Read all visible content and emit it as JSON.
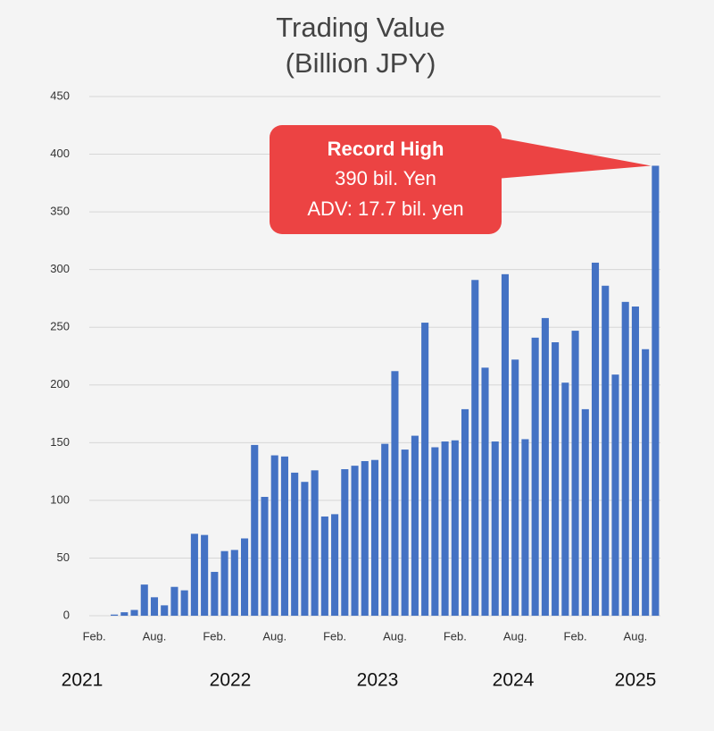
{
  "chart_data": {
    "type": "bar",
    "title": "Trading Value",
    "subtitle": "(Billion JPY)",
    "categories": [
      "Feb.",
      null,
      null,
      null,
      null,
      null,
      "Aug.",
      null,
      null,
      null,
      null,
      null,
      "Feb.",
      null,
      null,
      null,
      null,
      null,
      "Aug.",
      null,
      null,
      null,
      null,
      null,
      "Feb.",
      null,
      null,
      null,
      null,
      null,
      "Aug.",
      null,
      null,
      null,
      null,
      null,
      "Feb.",
      null,
      null,
      null,
      null,
      null,
      "Aug.",
      null,
      null,
      null,
      null,
      null,
      "Feb.",
      null,
      null,
      null,
      null,
      null,
      "Aug.",
      null,
      null
    ],
    "values": [
      0,
      0,
      1,
      3,
      5,
      27,
      16,
      9,
      25,
      22,
      71,
      70,
      38,
      56,
      57,
      67,
      148,
      103,
      139,
      138,
      124,
      116,
      126,
      86,
      88,
      127,
      130,
      134,
      135,
      149,
      212,
      144,
      156,
      254,
      146,
      151,
      152,
      179,
      291,
      215,
      151,
      296,
      222,
      153,
      241,
      258,
      237,
      202,
      247,
      179,
      306,
      286,
      209,
      272,
      268,
      231,
      390
    ],
    "color": "#4472c4",
    "ylim": [
      0,
      450
    ],
    "yticks": [
      0,
      50,
      100,
      150,
      200,
      250,
      300,
      350,
      400,
      450
    ],
    "grid": true,
    "year_labels": [
      "2021",
      "2022",
      "2023",
      "2024",
      "2025"
    ],
    "callout": {
      "lines": [
        "Record High",
        "390 bil. Yen",
        "ADV: 17.7 bil. yen"
      ],
      "color": "#ec4343"
    }
  }
}
